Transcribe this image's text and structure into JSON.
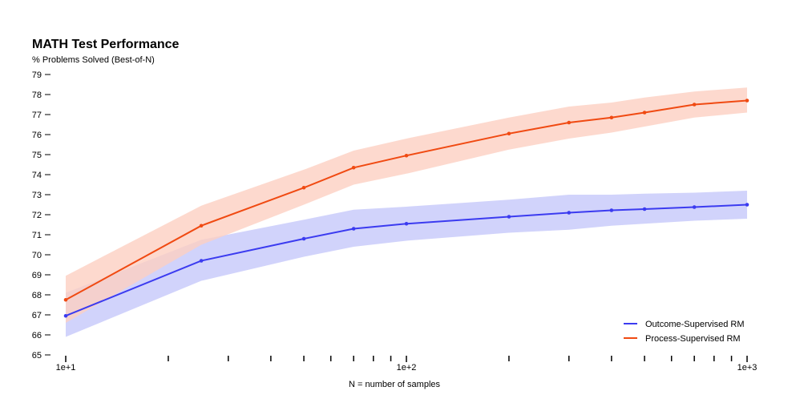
{
  "chart_data": {
    "type": "line",
    "title": "MATH Test Performance",
    "ylabel": "% Problems Solved (Best-of-N)",
    "xlabel": "N = number of samples",
    "x_scale": "log",
    "xlim": [
      10,
      1000
    ],
    "ylim": [
      65,
      79
    ],
    "yticks": [
      65,
      66,
      67,
      68,
      69,
      70,
      71,
      72,
      73,
      74,
      75,
      76,
      77,
      78,
      79
    ],
    "xticks_labeled": [
      {
        "value": 10,
        "label": "1e+1"
      },
      {
        "value": 100,
        "label": "1e+2"
      },
      {
        "value": 1000,
        "label": "1e+3"
      }
    ],
    "xticks_minor": [
      20,
      30,
      40,
      50,
      60,
      70,
      80,
      90,
      200,
      300,
      400,
      500,
      600,
      700,
      800,
      900
    ],
    "legend_position": "bottom-right",
    "grid": false,
    "series": [
      {
        "name": "Outcome-Supervised RM",
        "color": "#3b3bf0",
        "band_color": "#c9cbfa",
        "x": [
          10,
          25,
          50,
          70,
          100,
          200,
          300,
          400,
          500,
          700,
          1000
        ],
        "y": [
          66.95,
          69.7,
          70.8,
          71.3,
          71.55,
          71.9,
          72.1,
          72.22,
          72.28,
          72.38,
          72.5
        ],
        "lower": [
          65.9,
          68.7,
          69.9,
          70.4,
          70.7,
          71.1,
          71.25,
          71.45,
          71.55,
          71.7,
          71.8
        ],
        "upper": [
          68.1,
          70.75,
          71.75,
          72.25,
          72.4,
          72.75,
          73.0,
          73.0,
          73.05,
          73.1,
          73.2
        ]
      },
      {
        "name": "Process-Supervised RM",
        "color": "#f04a12",
        "band_color": "#fdd0c2",
        "x": [
          10,
          25,
          50,
          70,
          100,
          200,
          300,
          400,
          500,
          700,
          1000
        ],
        "y": [
          67.75,
          71.45,
          73.35,
          74.35,
          74.95,
          76.05,
          76.6,
          76.85,
          77.1,
          77.5,
          77.7
        ],
        "lower": [
          66.6,
          70.5,
          72.5,
          73.5,
          74.05,
          75.25,
          75.8,
          76.1,
          76.4,
          76.85,
          77.1
        ],
        "upper": [
          68.95,
          72.45,
          74.25,
          75.2,
          75.8,
          76.85,
          77.4,
          77.6,
          77.85,
          78.15,
          78.35
        ]
      }
    ]
  }
}
